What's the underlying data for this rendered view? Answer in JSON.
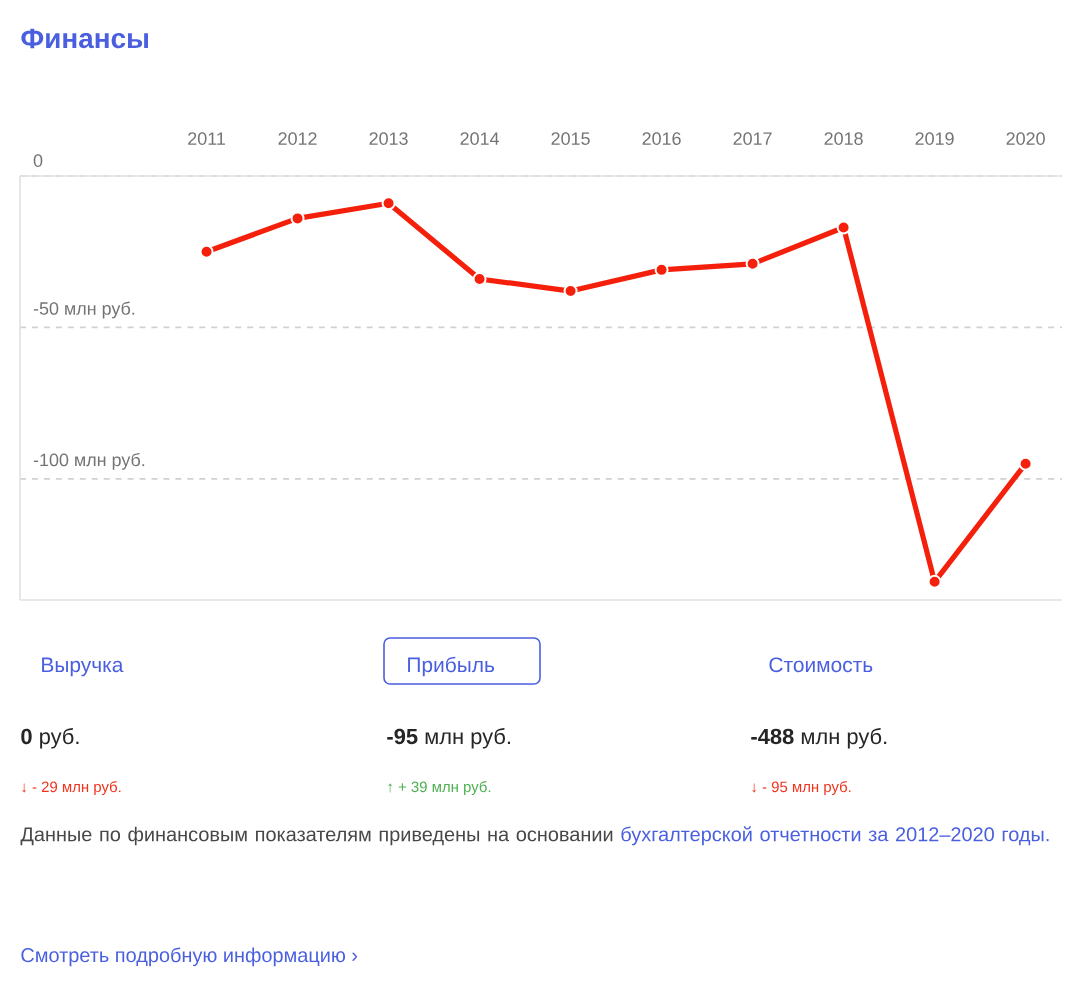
{
  "chart_data": {
    "type": "line",
    "title": "Финансы",
    "categories": [
      "2011",
      "2012",
      "2013",
      "2014",
      "2015",
      "2016",
      "2017",
      "2018",
      "2019",
      "2020"
    ],
    "series": [
      {
        "color": "#f5200c",
        "values": [
          -25,
          -14,
          -9,
          -34,
          -38,
          -31,
          -29,
          -17,
          -134,
          -95
        ]
      }
    ],
    "yticks": [
      0,
      {
        "value": -50,
        "label": "-50 млн руб."
      },
      {
        "value": -100,
        "label": "-100 млн руб."
      }
    ],
    "ylim": [
      -140,
      0
    ],
    "grid": "y",
    "marker": "circle",
    "line_style": "solid",
    "annotations": [
      "Выручка",
      "Прибыль",
      "Стоимость",
      "**0** руб.",
      "**-95** млн руб.",
      "**-488** млн руб.",
      "↓ - 29 млн руб.",
      "↑ + 39 млн руб.",
      "↓ - 95 млн руб.",
      "Данные по финансовым показателям приведены на основании",
      "бухгалтерской отчетности за 2012–2020 годы.",
      "Смотреть подробную информацию ›"
    ]
  }
}
